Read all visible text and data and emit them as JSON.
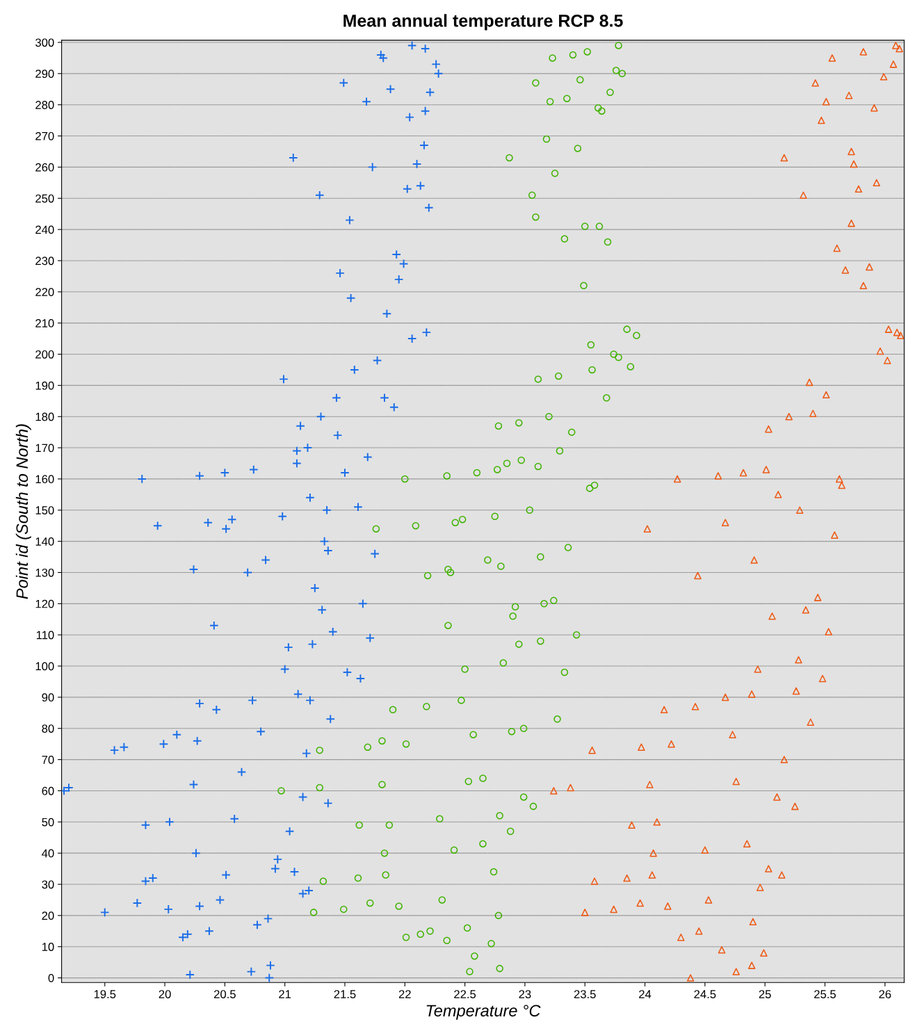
{
  "chart_data": {
    "type": "scatter",
    "title": "Mean annual temperature RCP 8.5",
    "xlabel": "Temperature °C",
    "ylabel": "Point id (South to North)",
    "xlim": [
      19.14,
      26.16
    ],
    "ylim": [
      -1.5,
      300.7
    ],
    "xticks": [
      19.5,
      20,
      20.5,
      21,
      21.5,
      22,
      22.5,
      23,
      23.5,
      24,
      24.5,
      25,
      25.5,
      26
    ],
    "yticks": [
      0,
      10,
      20,
      30,
      40,
      50,
      60,
      70,
      80,
      90,
      100,
      110,
      120,
      130,
      140,
      150,
      160,
      170,
      180,
      190,
      200,
      210,
      220,
      230,
      240,
      250,
      260,
      270,
      280,
      290,
      300
    ],
    "grid": "y",
    "legend": false,
    "series": [
      {
        "color": "#1a6de8",
        "marker": "cross",
        "x": [
          19.81,
          19.16,
          19.2,
          19.5,
          19.66,
          19.58,
          19.77,
          19.84,
          19.9,
          19.84,
          19.94,
          19.99,
          20.03,
          20.04,
          20.1,
          20.15,
          20.19,
          20.21,
          20.24,
          20.24,
          20.26,
          20.27,
          20.29,
          20.29,
          20.29,
          20.36,
          20.37,
          20.41,
          20.43,
          20.46,
          20.5,
          20.51,
          20.51,
          20.56,
          20.58,
          20.64,
          20.69,
          20.72,
          20.73,
          20.74,
          20.77,
          20.8,
          20.84,
          20.86,
          20.87,
          20.88,
          20.92,
          20.94,
          20.98,
          20.99,
          21.0,
          21.03,
          21.04,
          21.07,
          21.08,
          21.1,
          21.1,
          21.11,
          21.13,
          21.15,
          21.15,
          21.2,
          21.18,
          21.19,
          21.21,
          21.21,
          21.23,
          21.25,
          21.29,
          21.3,
          21.31,
          21.33,
          21.35,
          21.36,
          21.36,
          21.38,
          21.4,
          21.43,
          21.44,
          21.46,
          21.49,
          21.5,
          21.52,
          21.54,
          21.55,
          21.58,
          21.61,
          21.63,
          21.65,
          21.68,
          21.69,
          21.71,
          21.73,
          21.75,
          21.77,
          21.8,
          21.82,
          21.83,
          21.85,
          21.88,
          21.91,
          21.93,
          21.95,
          21.99,
          22.02,
          22.04,
          22.06,
          22.06,
          22.1,
          22.13,
          22.16,
          22.17,
          22.17,
          22.18,
          22.2,
          22.21,
          22.26,
          22.28
        ],
        "values": [
          160,
          60,
          61,
          21,
          74,
          73,
          24,
          31,
          32,
          49,
          145,
          75,
          22,
          50,
          78,
          13,
          14,
          1,
          131,
          62,
          40,
          76,
          161,
          23,
          88,
          146,
          15,
          113,
          86,
          25,
          162,
          33,
          144,
          147,
          51,
          66,
          130,
          2,
          89,
          163,
          17,
          79,
          134,
          19,
          0,
          4,
          35,
          38,
          148,
          192,
          99,
          106,
          47,
          263,
          34,
          165,
          169,
          91,
          177,
          58,
          27,
          28,
          72,
          170,
          89,
          154,
          107,
          125,
          251,
          180,
          118,
          140,
          150,
          137,
          56,
          83,
          111,
          186,
          174,
          226,
          287,
          162,
          98,
          243,
          218,
          195,
          151,
          96,
          120,
          281,
          167,
          109,
          260,
          136,
          198,
          296,
          295,
          186,
          213,
          285,
          183,
          232,
          224,
          229,
          253,
          276,
          299,
          205,
          261,
          254,
          267,
          298,
          278,
          207,
          247,
          284,
          293,
          290
        ]
      },
      {
        "color": "#3fb300",
        "marker": "circle",
        "x": [
          21.29,
          21.29,
          20.97,
          21.24,
          21.32,
          21.49,
          21.61,
          21.62,
          21.69,
          21.71,
          21.76,
          21.81,
          21.81,
          21.83,
          21.84,
          21.87,
          21.9,
          21.95,
          22.0,
          22.01,
          22.01,
          22.09,
          22.13,
          22.18,
          22.19,
          22.21,
          22.29,
          22.31,
          22.35,
          22.35,
          22.36,
          22.36,
          22.38,
          22.41,
          22.42,
          22.47,
          22.48,
          22.5,
          22.52,
          22.53,
          22.54,
          22.57,
          22.58,
          22.6,
          22.65,
          22.65,
          22.69,
          22.72,
          22.74,
          22.75,
          22.77,
          22.78,
          22.78,
          22.79,
          22.79,
          22.8,
          22.82,
          22.85,
          22.87,
          22.88,
          22.89,
          22.9,
          22.92,
          22.95,
          22.95,
          22.97,
          22.99,
          22.99,
          23.04,
          23.06,
          23.07,
          23.09,
          23.09,
          23.11,
          23.11,
          23.13,
          23.13,
          23.16,
          23.18,
          23.2,
          23.21,
          23.23,
          23.24,
          23.25,
          23.27,
          23.28,
          23.29,
          23.33,
          23.33,
          23.35,
          23.36,
          23.39,
          23.4,
          23.43,
          23.44,
          23.46,
          23.49,
          23.5,
          23.52,
          23.54,
          23.55,
          23.56,
          23.58,
          23.61,
          23.62,
          23.64,
          23.68,
          23.69,
          23.71,
          23.74,
          23.76,
          23.78,
          23.81,
          23.78,
          23.85,
          23.88,
          23.93
        ],
        "values": [
          73,
          61,
          60,
          21,
          31,
          22,
          32,
          49,
          74,
          24,
          144,
          76,
          62,
          40,
          33,
          49,
          86,
          23,
          160,
          13,
          75,
          145,
          14,
          87,
          129,
          15,
          51,
          25,
          161,
          12,
          131,
          113,
          130,
          41,
          146,
          89,
          147,
          99,
          16,
          63,
          2,
          78,
          7,
          162,
          64,
          43,
          134,
          11,
          34,
          148,
          163,
          177,
          20,
          3,
          52,
          132,
          101,
          165,
          263,
          47,
          79,
          116,
          119,
          178,
          107,
          166,
          80,
          58,
          150,
          251,
          55,
          244,
          287,
          192,
          164,
          135,
          108,
          120,
          269,
          180,
          281,
          295,
          121,
          258,
          83,
          193,
          169,
          98,
          237,
          282,
          138,
          175,
          296,
          110,
          266,
          288,
          222,
          241,
          297,
          157,
          203,
          195,
          158,
          279,
          241,
          278,
          186,
          236,
          284,
          200,
          291,
          299,
          290,
          199,
          208,
          196,
          206
        ]
      },
      {
        "color": "#ee5a14",
        "marker": "triangle",
        "x": [
          23.97,
          24.02,
          24.04,
          24.07,
          24.1,
          24.16,
          24.22,
          24.27,
          24.3,
          24.38,
          24.42,
          24.44,
          24.5,
          24.53,
          24.61,
          24.67,
          24.67,
          24.73,
          24.76,
          24.82,
          24.89,
          24.91,
          24.94,
          25.01,
          25.03,
          25.06,
          25.11,
          25.16,
          25.2,
          25.26,
          25.29,
          25.32,
          25.37,
          25.4,
          25.42,
          25.47,
          25.51,
          25.53,
          25.56,
          25.58,
          25.6,
          25.64,
          25.67,
          25.7,
          25.74,
          25.78,
          25.82,
          25.87,
          25.91,
          25.96,
          25.99,
          26.02,
          26.03,
          26.1,
          26.13,
          26.09,
          26.12,
          26.07,
          25.93,
          25.82,
          25.72,
          25.72,
          25.62,
          25.51,
          25.44,
          25.34,
          25.28,
          25.16,
          25.25,
          25.14,
          25.03,
          24.99,
          24.9,
          24.85,
          24.76,
          25.1,
          25.38,
          25.48,
          24.96,
          24.89,
          24.64,
          24.45,
          23.96,
          24.19,
          23.85,
          23.58,
          23.5,
          23.74,
          23.56,
          23.24,
          23.38,
          24.06,
          23.89
        ],
        "values": [
          74,
          144,
          62,
          40,
          50,
          86,
          75,
          160,
          13,
          0,
          87,
          129,
          41,
          25,
          161,
          90,
          146,
          78,
          2,
          162,
          91,
          134,
          99,
          163,
          176,
          116,
          155,
          263,
          180,
          92,
          150,
          251,
          191,
          181,
          287,
          275,
          281,
          111,
          295,
          142,
          234,
          158,
          227,
          283,
          261,
          253,
          297,
          228,
          279,
          201,
          289,
          198,
          208,
          207,
          206,
          299,
          298,
          293,
          255,
          222,
          242,
          265,
          160,
          187,
          122,
          118,
          102,
          70,
          55,
          33,
          35,
          8,
          18,
          43,
          63,
          58,
          82,
          96,
          29,
          4,
          9,
          15,
          24,
          23,
          32,
          31,
          21,
          22,
          73,
          60,
          61,
          33,
          49
        ]
      }
    ]
  }
}
